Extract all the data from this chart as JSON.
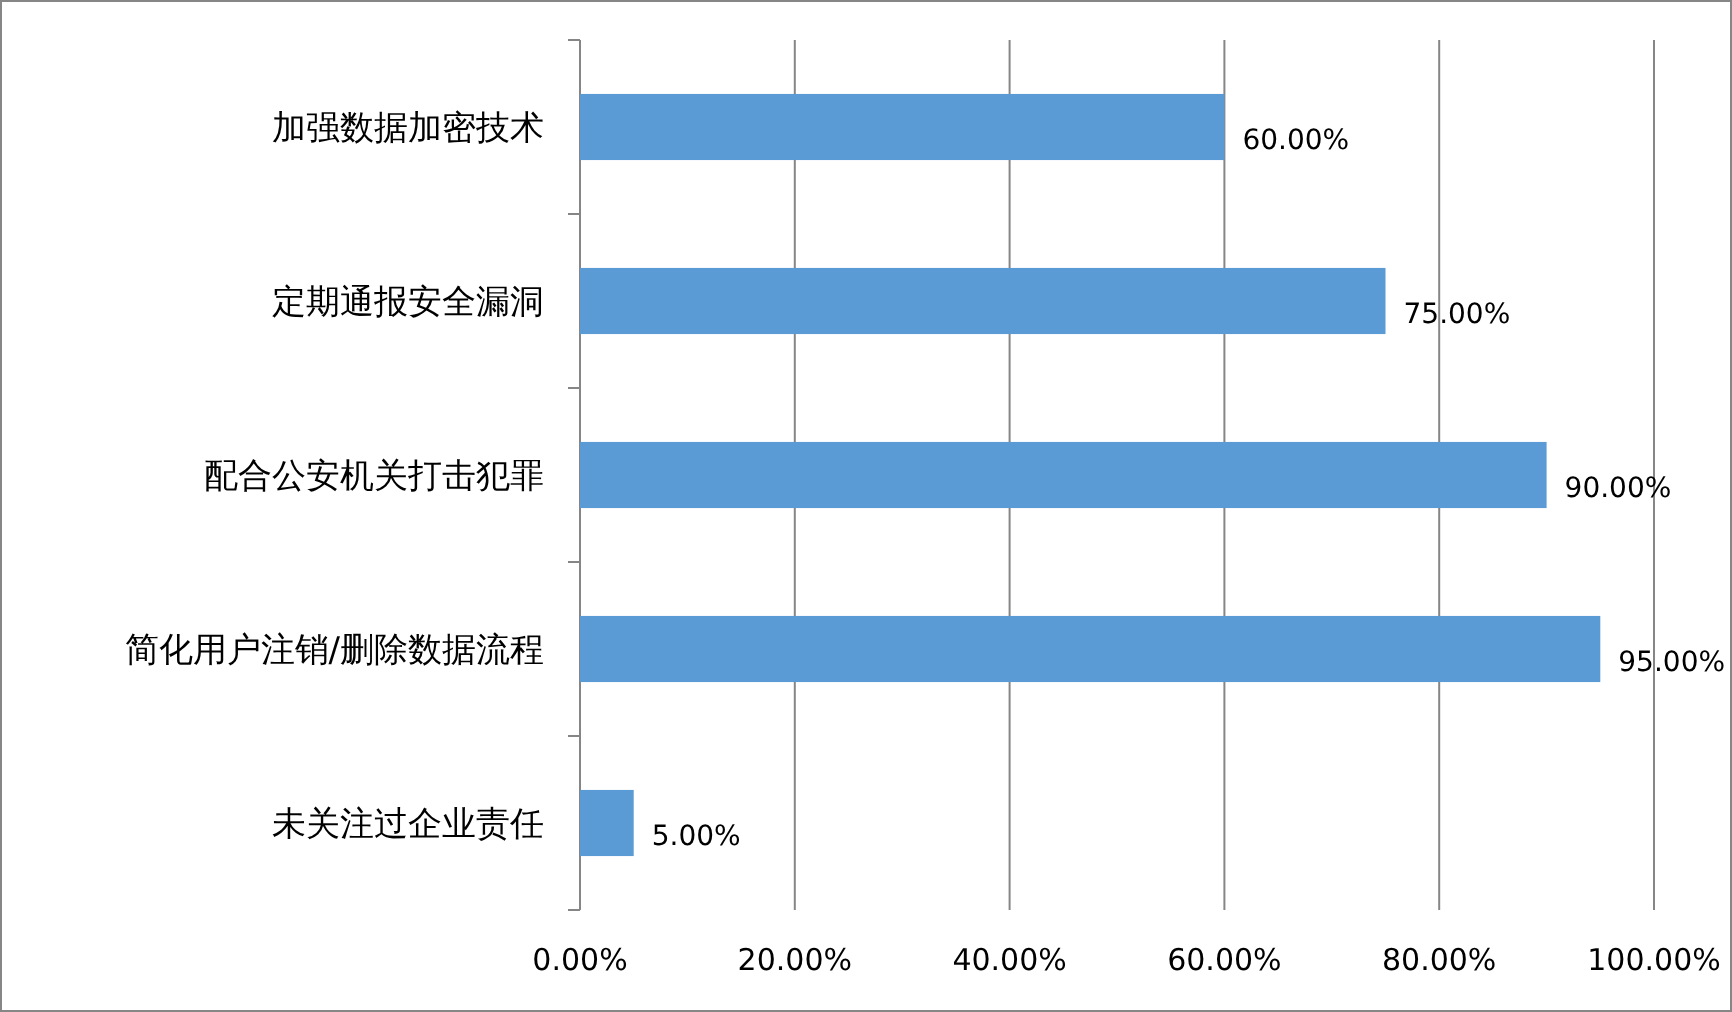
{
  "chart_data": {
    "type": "bar",
    "orientation": "horizontal",
    "categories": [
      "加强数据加密技术",
      "定期通报安全漏洞",
      "配合公安机关打击犯罪",
      "简化用户注销/删除数据流程",
      "未关注过企业责任"
    ],
    "values": [
      60,
      75,
      90,
      95,
      5
    ],
    "value_labels": [
      "60.00%",
      "75.00%",
      "90.00%",
      "95.00%",
      "5.00%"
    ],
    "color": "#5b9bd5",
    "xlim": [
      0,
      100
    ],
    "xticks": [
      {
        "value": 0,
        "label": "0.00%"
      },
      {
        "value": 20,
        "label": "20.00%"
      },
      {
        "value": 40,
        "label": "40.00%"
      },
      {
        "value": 60,
        "label": "60.00%"
      },
      {
        "value": 80,
        "label": "80.00%"
      },
      {
        "value": 100,
        "label": "100.00%"
      }
    ],
    "grid": "x"
  }
}
